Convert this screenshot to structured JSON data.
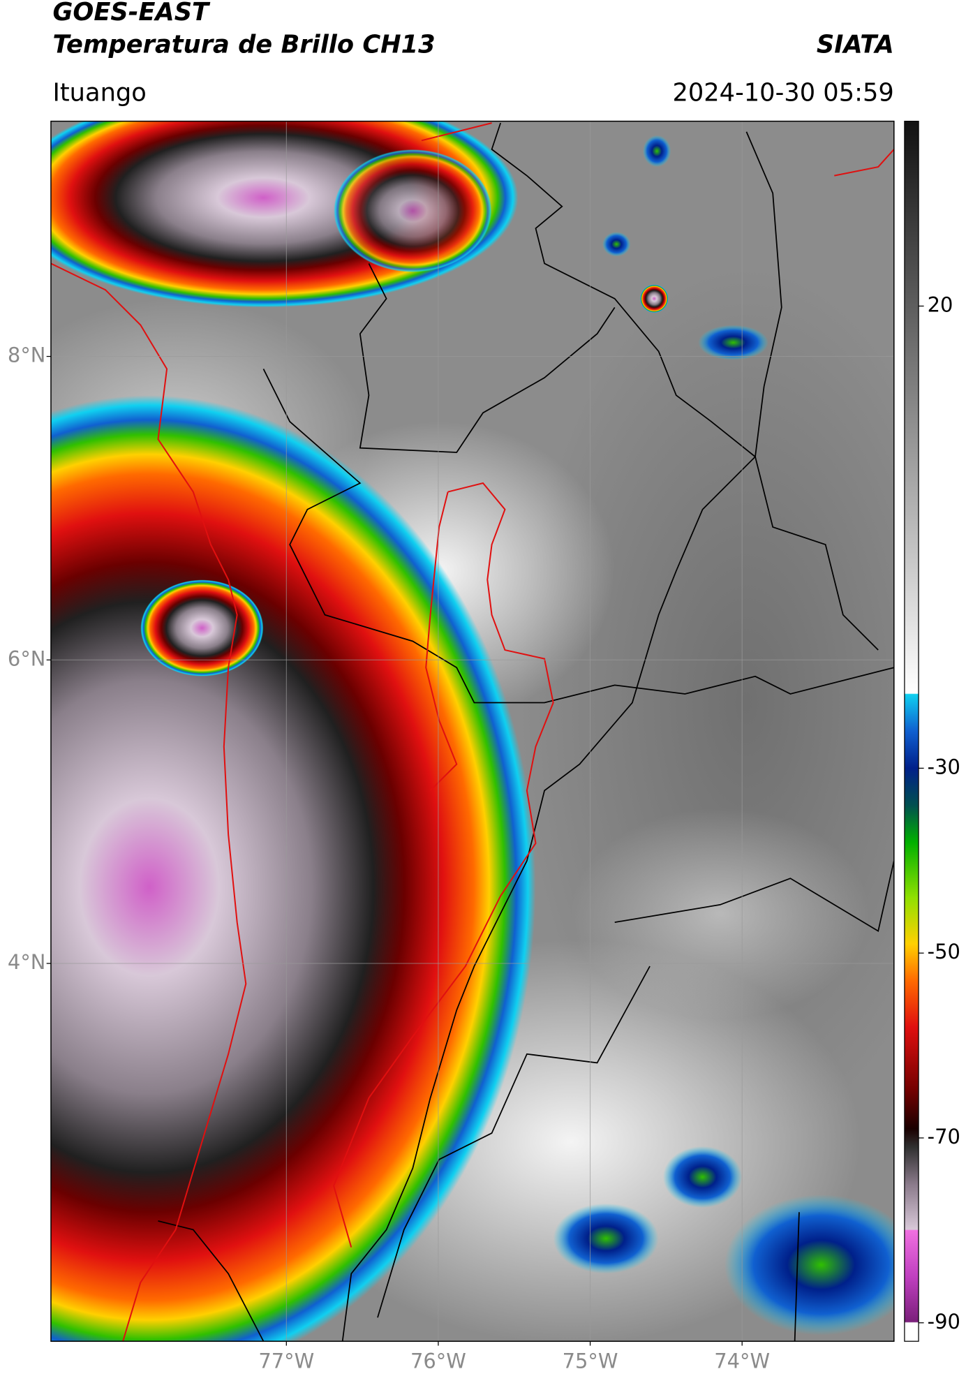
{
  "header": {
    "title": "GOES-EAST",
    "subtitle": "Temperatura de Brillo CH13",
    "brand": "SIATA",
    "location": "Ituango",
    "timestamp": "2024-10-30 05:59"
  },
  "map": {
    "lon_range": [
      -78.55,
      -73.0
    ],
    "lat_range": [
      1.51,
      9.55
    ],
    "lat_ticks": [
      {
        "value": 8,
        "label": "8°N"
      },
      {
        "value": 6,
        "label": "6°N"
      },
      {
        "value": 4,
        "label": "4°N"
      }
    ],
    "lon_ticks": [
      {
        "value": -77,
        "label": "77°W"
      },
      {
        "value": -76,
        "label": "76°W"
      },
      {
        "value": -75,
        "label": "75°W"
      },
      {
        "value": -74,
        "label": "74°W"
      }
    ],
    "grid": true
  },
  "colorbar": {
    "range": [
      -92,
      40
    ],
    "ticks": [
      20,
      -30,
      -50,
      -70,
      -90
    ],
    "colorscale": [
      [
        -92,
        "#ffffff"
      ],
      [
        -90,
        "#ffffff"
      ],
      [
        -89.9,
        "#7a1f7a"
      ],
      [
        -85,
        "#c040c0"
      ],
      [
        -80,
        "#f070e0"
      ],
      [
        -79.9,
        "#d8c8d8"
      ],
      [
        -75,
        "#8a7a8a"
      ],
      [
        -71,
        "#303030"
      ],
      [
        -69,
        "#1a0000"
      ],
      [
        -65,
        "#700000"
      ],
      [
        -58,
        "#e01010"
      ],
      [
        -53,
        "#ff6a00"
      ],
      [
        -49,
        "#ffd000"
      ],
      [
        -44,
        "#90e000"
      ],
      [
        -38,
        "#00b000"
      ],
      [
        -34,
        "#005050"
      ],
      [
        -30,
        "#00208a"
      ],
      [
        -26,
        "#1060d0"
      ],
      [
        -22,
        "#10d0f0"
      ],
      [
        -21.9,
        "#ffffff"
      ],
      [
        40,
        "#111111"
      ]
    ]
  }
}
